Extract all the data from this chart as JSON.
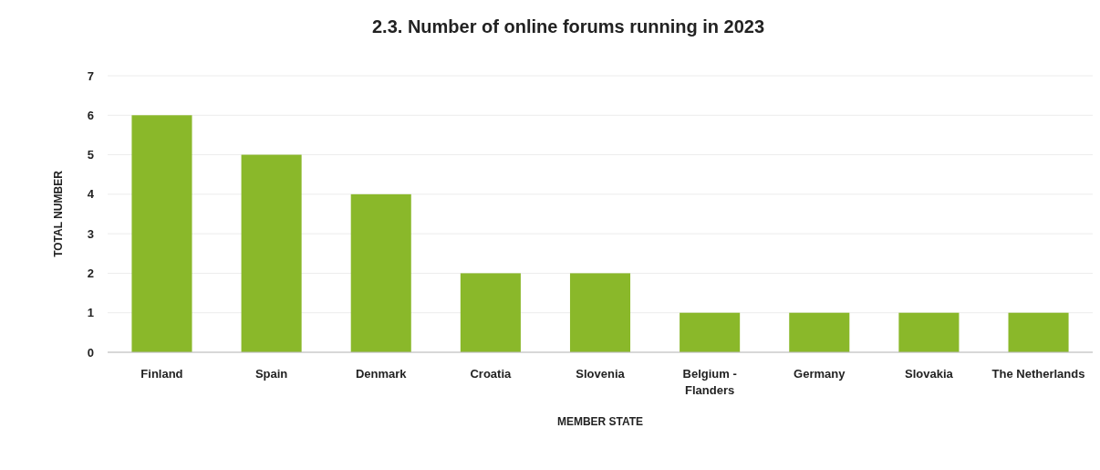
{
  "chart_data": {
    "type": "bar",
    "title": "2.3. Number of online forums running in 2023",
    "xlabel": "MEMBER STATE",
    "ylabel": "TOTAL NUMBER",
    "categories": [
      "Finland",
      "Spain",
      "Denmark",
      "Croatia",
      "Slovenia",
      "Belgium - Flanders",
      "Germany",
      "Slovakia",
      "The Netherlands"
    ],
    "values": [
      6,
      5,
      4,
      2,
      2,
      1,
      1,
      1,
      1
    ],
    "color": "#8ab82a",
    "ylim": [
      0,
      7
    ],
    "yticks": [
      0,
      1,
      2,
      3,
      4,
      5,
      6,
      7
    ],
    "grid": "y"
  }
}
